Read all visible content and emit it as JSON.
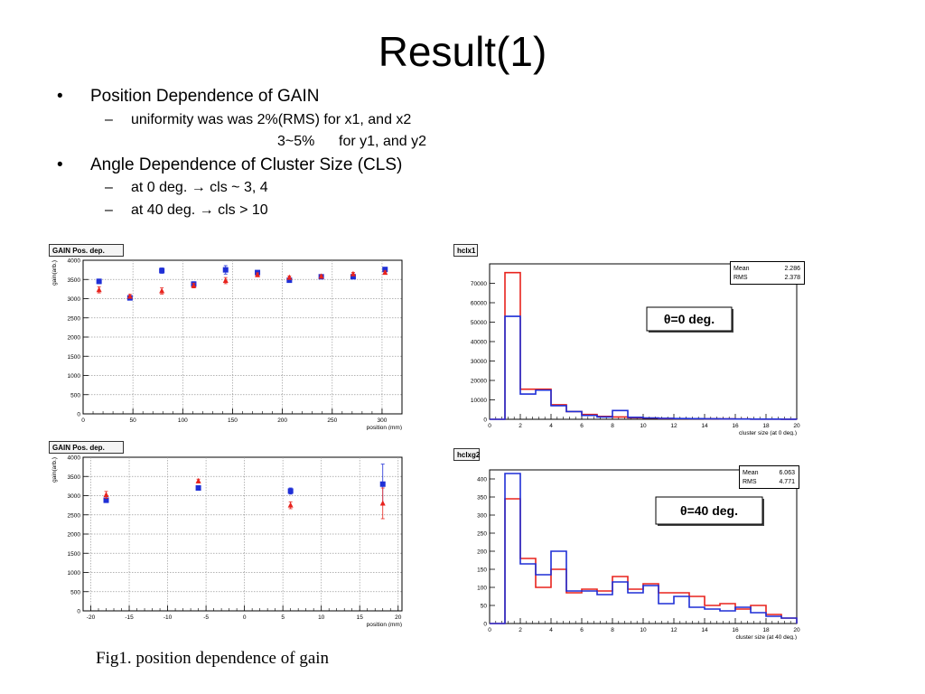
{
  "slide": {
    "title": "Result(1)",
    "bullets": [
      {
        "text": "Position Dependence of GAIN",
        "subs": [
          "uniformity was was 2%(RMS) for x1, and x2",
          "3~5%      for y1, and y2"
        ]
      },
      {
        "text": "Angle Dependence of Cluster Size (CLS)",
        "subs": [
          "at 0 deg. → cls ~ 3, 4",
          "at 40 deg. → cls > 10"
        ]
      }
    ],
    "bullet_mark": "•",
    "sub_mark": "–",
    "caption": "Fig1. position dependence of gain"
  },
  "colors": {
    "red": "#e8231d",
    "blue": "#1f2fd6",
    "grid": "#9a9a9a",
    "frame_bg": "#ededed"
  },
  "chart_data": [
    {
      "type": "scatter",
      "title": "GAIN Pos. dep.",
      "xlabel": "position (mm)",
      "ylabel": "gain(arb.)",
      "xlim": [
        0,
        320
      ],
      "ylim": [
        0,
        4000
      ],
      "xticks": [
        0,
        50,
        100,
        150,
        200,
        250,
        300
      ],
      "yticks": [
        0,
        500,
        1000,
        1500,
        2000,
        2500,
        3000,
        3500,
        4000
      ],
      "grid": true,
      "series": [
        {
          "marker": "square",
          "color": "blue",
          "points": [
            [
              16,
              3450,
              60
            ],
            [
              47,
              3020,
              50
            ],
            [
              79,
              3730,
              70
            ],
            [
              111,
              3380,
              60
            ],
            [
              143,
              3750,
              110
            ],
            [
              175,
              3680,
              50
            ],
            [
              207,
              3480,
              40
            ],
            [
              239,
              3570,
              40
            ],
            [
              271,
              3570,
              40
            ],
            [
              303,
              3760,
              40
            ]
          ]
        },
        {
          "marker": "triangle",
          "color": "red",
          "points": [
            [
              16,
              3230,
              80
            ],
            [
              47,
              3060,
              50
            ],
            [
              79,
              3200,
              80
            ],
            [
              111,
              3340,
              60
            ],
            [
              143,
              3470,
              80
            ],
            [
              175,
              3620,
              50
            ],
            [
              207,
              3550,
              40
            ],
            [
              239,
              3580,
              40
            ],
            [
              271,
              3640,
              40
            ],
            [
              303,
              3680,
              40
            ]
          ]
        }
      ]
    },
    {
      "type": "scatter",
      "title": "GAIN Pos. dep.",
      "xlabel": "position (mm)",
      "ylabel": "gain(arb.)",
      "xlim": [
        -21,
        20.5
      ],
      "ylim": [
        0,
        4000
      ],
      "xticks": [
        -20,
        -15,
        -10,
        -5,
        0,
        5,
        10,
        15,
        20
      ],
      "yticks": [
        0,
        500,
        1000,
        1500,
        2000,
        2500,
        3000,
        3500,
        4000
      ],
      "grid": true,
      "series": [
        {
          "marker": "square",
          "color": "blue",
          "points": [
            [
              -18,
              2880,
              60
            ],
            [
              -6,
              3200,
              50
            ],
            [
              6,
              3120,
              80
            ],
            [
              18,
              3300,
              520
            ]
          ]
        },
        {
          "marker": "triangle",
          "color": "red",
          "points": [
            [
              -18,
              3020,
              90
            ],
            [
              -6,
              3380,
              50
            ],
            [
              6,
              2750,
              90
            ],
            [
              18,
              2800,
              400
            ]
          ]
        }
      ]
    },
    {
      "type": "histogram",
      "title": "hclx1",
      "xlabel": "cluster size (at 0 deg.)",
      "xlim": [
        0,
        20
      ],
      "ylim": [
        0,
        80000
      ],
      "xticks": [
        0,
        2,
        4,
        6,
        8,
        10,
        12,
        14,
        16,
        18,
        20
      ],
      "yticks": [
        0,
        10000,
        20000,
        30000,
        40000,
        50000,
        60000,
        70000
      ],
      "stats": {
        "Mean": "2.286",
        "RMS": "2.378"
      },
      "annotation": "θ=0 deg.",
      "series": [
        {
          "color": "red",
          "values": [
            0,
            75500,
            15500,
            15500,
            7500,
            4000,
            2500,
            1500,
            1200,
            800,
            600,
            400,
            300,
            300,
            250,
            200,
            150,
            100,
            100,
            50
          ]
        },
        {
          "color": "blue",
          "values": [
            0,
            53000,
            13000,
            15000,
            7000,
            4000,
            2000,
            1200,
            4500,
            1000,
            700,
            500,
            400,
            300,
            250,
            200,
            150,
            100,
            100,
            50
          ]
        }
      ]
    },
    {
      "type": "histogram",
      "title": "hclxg2",
      "xlabel": "cluster size (at 40 deg.)",
      "xlim": [
        0,
        20
      ],
      "ylim": [
        0,
        425
      ],
      "xticks": [
        0,
        2,
        4,
        6,
        8,
        10,
        12,
        14,
        16,
        18,
        20
      ],
      "yticks": [
        0,
        50,
        100,
        150,
        200,
        250,
        300,
        350,
        400
      ],
      "stats": {
        "Mean": "6.063",
        "RMS": "4.771"
      },
      "annotation": "θ=40 deg.",
      "series": [
        {
          "color": "red",
          "values": [
            0,
            345,
            180,
            100,
            150,
            85,
            95,
            90,
            130,
            95,
            110,
            85,
            85,
            75,
            50,
            55,
            40,
            50,
            25,
            15
          ]
        },
        {
          "color": "blue",
          "values": [
            0,
            415,
            165,
            135,
            200,
            90,
            90,
            80,
            115,
            85,
            105,
            55,
            75,
            45,
            40,
            35,
            45,
            30,
            20,
            15
          ]
        }
      ]
    }
  ]
}
